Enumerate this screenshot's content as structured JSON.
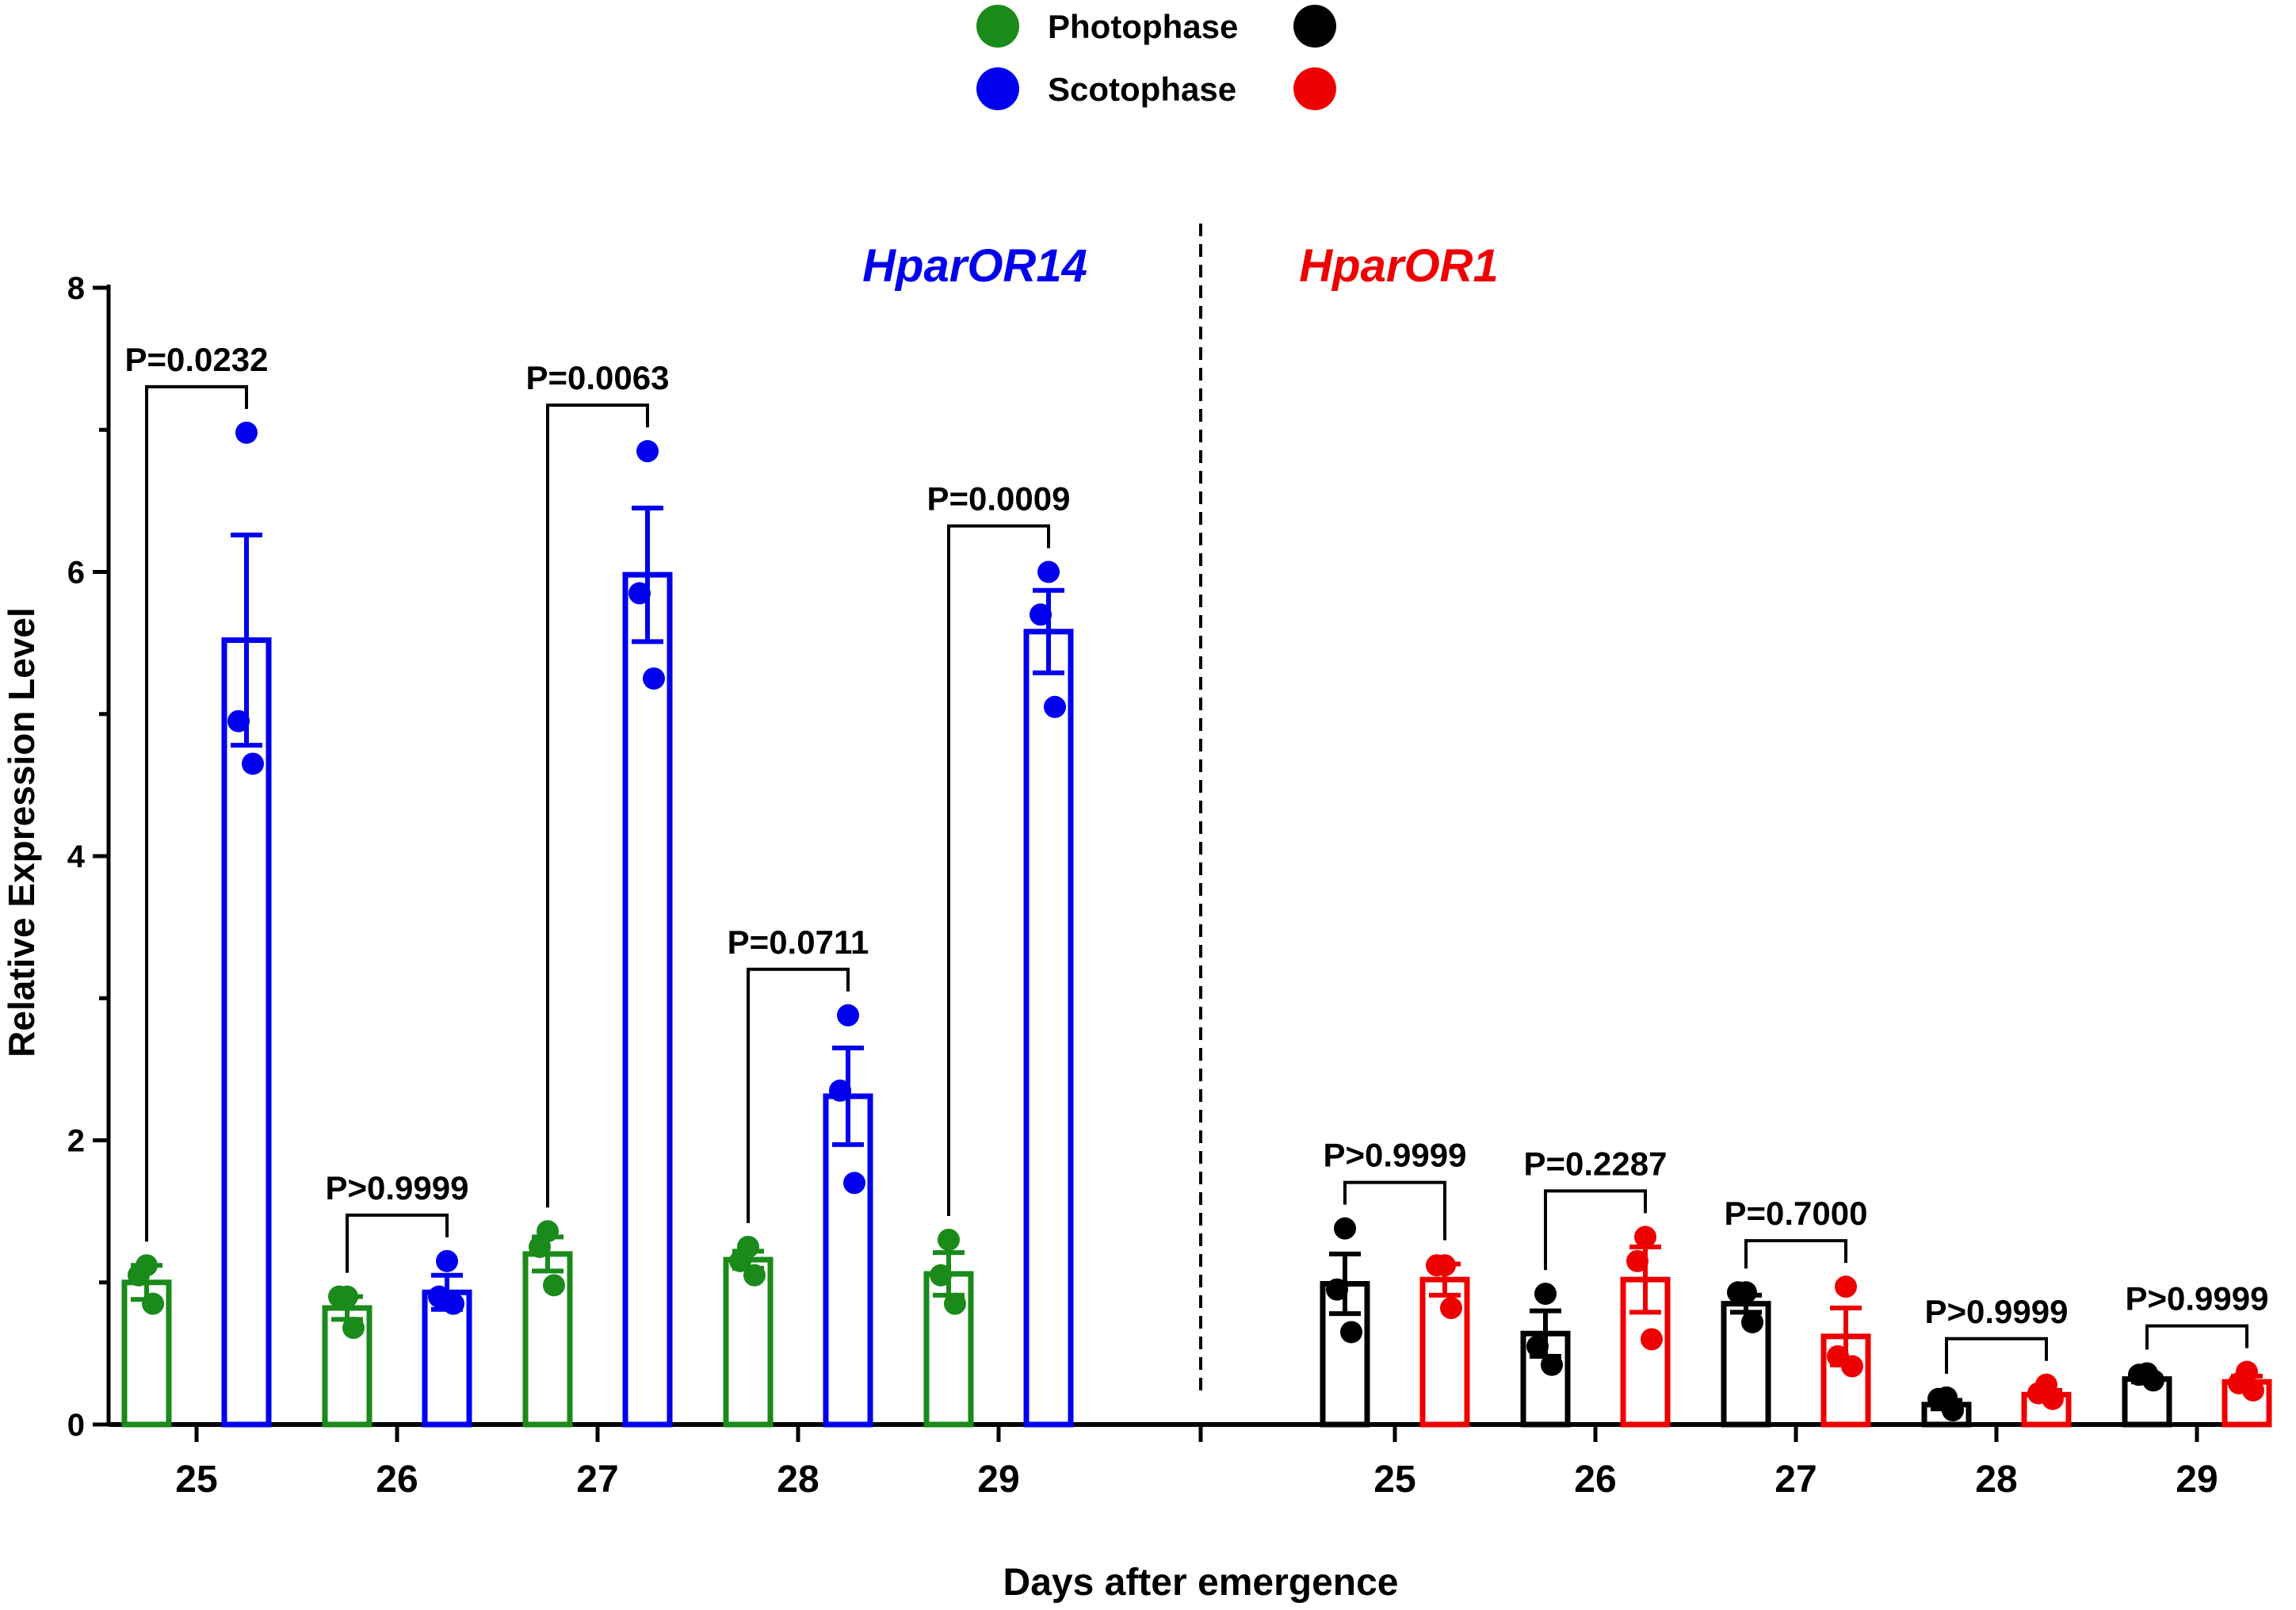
{
  "chart_data": {
    "type": "bar",
    "ylabel": "Relative Expression Level",
    "xlabel": "Days after emergence",
    "ylim": [
      0,
      8
    ],
    "yticks": [
      "0",
      "2",
      "4",
      "6",
      "8"
    ],
    "grid": false,
    "legend": {
      "placement": "top-center",
      "entries": [
        {
          "label": "Photophase",
          "colors": [
            "#1a8a1a",
            "#000000"
          ]
        },
        {
          "label": "Scotophase",
          "colors": [
            "#0000ee",
            "#ee0000"
          ]
        }
      ]
    },
    "groups": [
      {
        "gene": "HparOR14",
        "gene_color": "#0000ee",
        "photophase_color": "#1a8a1a",
        "scotophase_color": "#0000ee",
        "days": [
          {
            "day": "25",
            "photophase": {
              "mean": 1.0,
              "sem": 0.12,
              "points": [
                1.12,
                1.05,
                0.85
              ]
            },
            "scotophase": {
              "mean": 5.52,
              "sem": 0.74,
              "points": [
                6.98,
                4.95,
                4.65
              ]
            },
            "p": "P=0.0232"
          },
          {
            "day": "26",
            "photophase": {
              "mean": 0.82,
              "sem": 0.08,
              "points": [
                0.9,
                0.9,
                0.68
              ]
            },
            "scotophase": {
              "mean": 0.93,
              "sem": 0.12,
              "points": [
                1.15,
                0.9,
                0.85
              ]
            },
            "p": "P>0.9999"
          },
          {
            "day": "27",
            "photophase": {
              "mean": 1.2,
              "sem": 0.12,
              "points": [
                1.36,
                1.25,
                0.98
              ]
            },
            "scotophase": {
              "mean": 5.98,
              "sem": 0.47,
              "points": [
                6.85,
                5.85,
                5.25
              ]
            },
            "p": "P=0.0063"
          },
          {
            "day": "28",
            "photophase": {
              "mean": 1.16,
              "sem": 0.06,
              "points": [
                1.25,
                1.15,
                1.05
              ]
            },
            "scotophase": {
              "mean": 2.31,
              "sem": 0.34,
              "points": [
                2.88,
                2.35,
                1.7
              ]
            },
            "p": "P=0.0711"
          },
          {
            "day": "29",
            "photophase": {
              "mean": 1.06,
              "sem": 0.15,
              "points": [
                1.3,
                1.05,
                0.85
              ]
            },
            "scotophase": {
              "mean": 5.58,
              "sem": 0.29,
              "points": [
                6.0,
                5.7,
                5.05
              ]
            },
            "p": "P=0.0009"
          }
        ]
      },
      {
        "gene": "HparOR1",
        "gene_color": "#ee0000",
        "photophase_color": "#000000",
        "scotophase_color": "#ee0000",
        "days": [
          {
            "day": "25",
            "photophase": {
              "mean": 0.99,
              "sem": 0.21,
              "points": [
                1.38,
                0.95,
                0.65
              ]
            },
            "scotophase": {
              "mean": 1.02,
              "sem": 0.11,
              "points": [
                1.12,
                1.12,
                0.82
              ]
            },
            "p": "P>0.9999"
          },
          {
            "day": "26",
            "photophase": {
              "mean": 0.64,
              "sem": 0.16,
              "points": [
                0.92,
                0.55,
                0.42
              ]
            },
            "scotophase": {
              "mean": 1.02,
              "sem": 0.23,
              "points": [
                1.32,
                1.15,
                0.6
              ]
            },
            "p": "P=0.2287"
          },
          {
            "day": "27",
            "photophase": {
              "mean": 0.85,
              "sem": 0.06,
              "points": [
                0.93,
                0.93,
                0.72
              ]
            },
            "scotophase": {
              "mean": 0.62,
              "sem": 0.2,
              "points": [
                0.97,
                0.48,
                0.41
              ]
            },
            "p": "P=0.7000"
          },
          {
            "day": "28",
            "photophase": {
              "mean": 0.14,
              "sem": 0.03,
              "points": [
                0.19,
                0.18,
                0.1
              ]
            },
            "scotophase": {
              "mean": 0.21,
              "sem": 0.03,
              "points": [
                0.28,
                0.22,
                0.18
              ]
            },
            "p": "P>0.9999"
          },
          {
            "day": "29",
            "photophase": {
              "mean": 0.32,
              "sem": 0.02,
              "points": [
                0.36,
                0.35,
                0.31
              ]
            },
            "scotophase": {
              "mean": 0.3,
              "sem": 0.04,
              "points": [
                0.37,
                0.29,
                0.24
              ]
            },
            "p": "P>0.9999"
          }
        ]
      }
    ]
  }
}
